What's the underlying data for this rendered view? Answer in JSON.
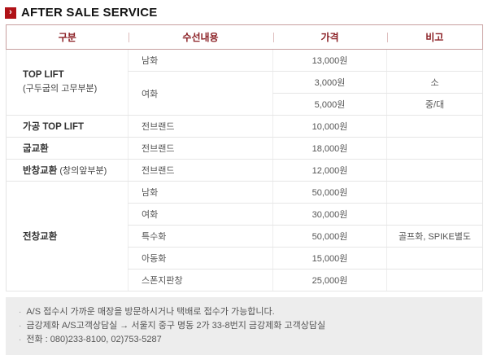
{
  "page": {
    "title": "AFTER SALE SERVICE"
  },
  "colors": {
    "accent_red": "#b01217",
    "header_text_red": "#8b2025",
    "header_border_rose": "#c79f9f",
    "body_line_gray": "#e6e6e6",
    "notes_bg_gray": "#ededed"
  },
  "icons": {
    "title_arrow": "›"
  },
  "table": {
    "headers": [
      "구분",
      "수선내용",
      "가격",
      "비고"
    ],
    "groups": [
      {
        "category": "TOP LIFT",
        "category_sub": "(구두굽의 고무부분)",
        "rows": [
          {
            "item": "남화",
            "price": "13,000원",
            "note": ""
          },
          {
            "item": "여화",
            "price": "3,000원",
            "note": "소"
          },
          {
            "item": "",
            "price": "5,000원",
            "note": "중/대"
          }
        ]
      },
      {
        "category": "가공 TOP LIFT",
        "category_sub": "",
        "rows": [
          {
            "item": "전브랜드",
            "price": "10,000원",
            "note": ""
          }
        ]
      },
      {
        "category": "굽교환",
        "category_sub": "",
        "rows": [
          {
            "item": "전브랜드",
            "price": "18,000원",
            "note": ""
          }
        ]
      },
      {
        "category": "반창교환",
        "category_sub": "(창의앞부분)",
        "rows": [
          {
            "item": "전브랜드",
            "price": "12,000원",
            "note": ""
          }
        ]
      },
      {
        "category": "전창교환",
        "category_sub": "",
        "rows": [
          {
            "item": "남화",
            "price": "50,000원",
            "note": ""
          },
          {
            "item": "여화",
            "price": "30,000원",
            "note": ""
          },
          {
            "item": "특수화",
            "price": "50,000원",
            "note": "골프화, SPIKE별도"
          },
          {
            "item": "아동화",
            "price": "15,000원",
            "note": ""
          },
          {
            "item": "스폰지판창",
            "price": "25,000원",
            "note": ""
          }
        ]
      }
    ]
  },
  "notes": [
    "A/S 접수시 가까운 매장을 방문하시거나 택배로 접수가 가능합니다.",
    "금강제화 A/S고객상담실 → 서울지 중구 명동 2가 33-8번지 금강제화 고객상담실",
    "전화 : 080)233-8100, 02)753-5287"
  ]
}
